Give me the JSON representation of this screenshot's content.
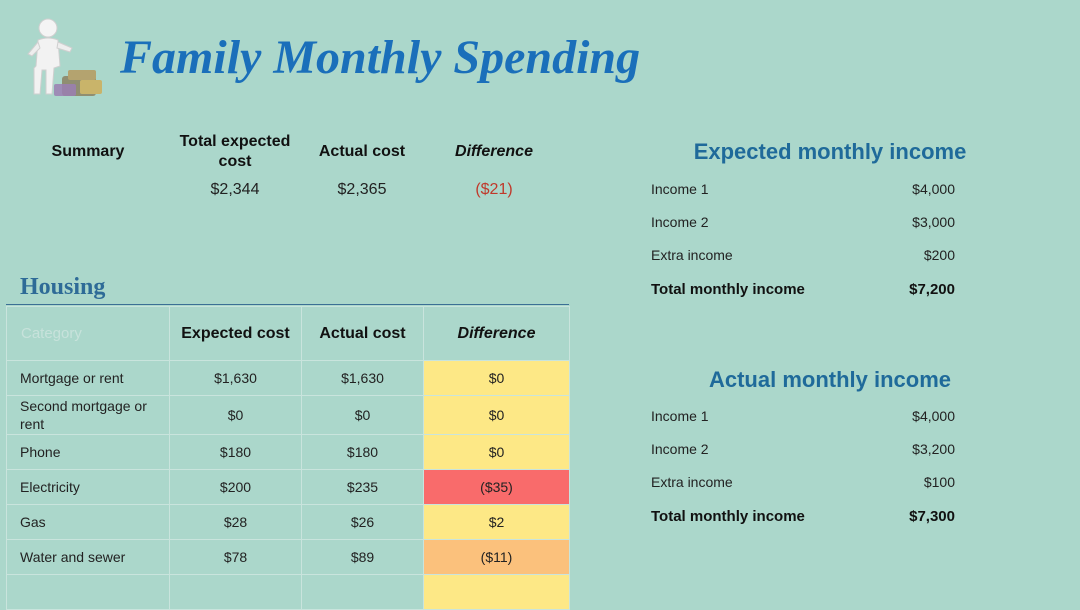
{
  "title": "Family Monthly Spending",
  "summary": {
    "label": "Summary",
    "total_expected_label": "Total expected cost",
    "actual_label": "Actual cost",
    "difference_label": "Difference",
    "total_expected": "$2,344",
    "actual": "$2,365",
    "difference": "($21)"
  },
  "housing": {
    "title": "Housing",
    "columns": [
      "Category",
      "Expected cost",
      "Actual cost",
      "Difference"
    ],
    "rows": [
      {
        "label": "Mortgage or rent",
        "expected": "$1,630",
        "actual": "$1,630",
        "difference": "$0"
      },
      {
        "label": "Second mortgage or rent",
        "expected": "$0",
        "actual": "$0",
        "difference": "$0"
      },
      {
        "label": "Phone",
        "expected": "$180",
        "actual": "$180",
        "difference": "$0"
      },
      {
        "label": "Electricity",
        "expected": "$200",
        "actual": "$235",
        "difference": "($35)"
      },
      {
        "label": "Gas",
        "expected": "$28",
        "actual": "$26",
        "difference": "$2"
      },
      {
        "label": "Water and sewer",
        "expected": "$78",
        "actual": "$89",
        "difference": "($11)"
      }
    ]
  },
  "expected_income": {
    "title": "Expected monthly income",
    "rows": [
      {
        "label": "Income 1",
        "value": "$4,000"
      },
      {
        "label": "Income 2",
        "value": "$3,000"
      },
      {
        "label": "Extra income",
        "value": "$200"
      }
    ],
    "total_label": "Total monthly income",
    "total": "$7,200"
  },
  "actual_income": {
    "title": "Actual monthly income",
    "rows": [
      {
        "label": "Income 1",
        "value": "$4,000"
      },
      {
        "label": "Income 2",
        "value": "$3,200"
      },
      {
        "label": "Extra income",
        "value": "$100"
      }
    ],
    "total_label": "Total monthly income",
    "total": "$7,300"
  },
  "colors": {
    "background": "#abd7cb",
    "title": "#1a6fba",
    "diff_neutral": "#fde886",
    "diff_bad": "#f96b6b",
    "diff_warn": "#fbc17c",
    "negative_text": "#c0392b"
  }
}
